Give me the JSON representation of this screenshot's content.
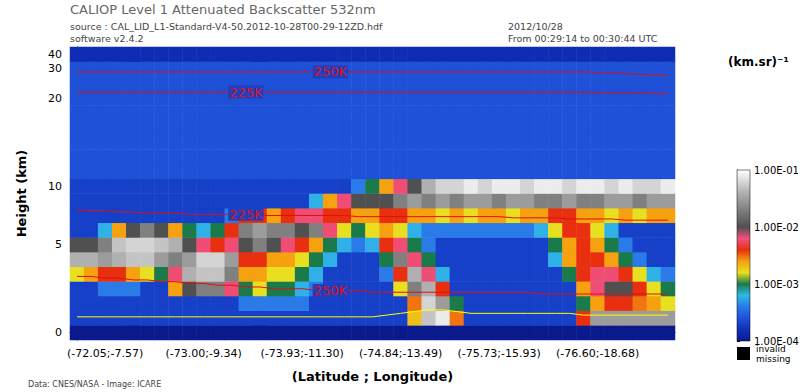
{
  "chart_data": {
    "type": "heatmap",
    "title": "CALIOP Level 1 Attenuated Backscatter 532nm",
    "header": {
      "source": "source : CAL_LID_L1-Standard-V4-50.2012-10-28T00-29-12ZD.hdf",
      "software": "software v2.4.2",
      "date": "2012/10/28",
      "time": "From 00:29:14 to 00:30:44 UTC"
    },
    "footer": "Data: CNES/NASA - Image: ICARE",
    "xlabel": "(Latitude ; Longitude)",
    "ylabel": "Height (km)",
    "x": [
      null,
      null,
      "(-72.05;-7.57)",
      null,
      null,
      null,
      null,
      null,
      null,
      "(-73.00;-9.34)",
      null,
      null,
      null,
      null,
      null,
      null,
      "(-73.93;-11.30)",
      null,
      null,
      null,
      null,
      null,
      null,
      "(-74.84;-13.49)",
      null,
      null,
      null,
      null,
      null,
      null,
      "(-75.73;-15.93)",
      null,
      null,
      null,
      null,
      null,
      null,
      "(-76.60;-18.68)",
      null,
      null,
      null,
      null,
      null
    ],
    "y": [
      0,
      null,
      null,
      null,
      null,
      null,
      5,
      null,
      null,
      null,
      10,
      null,
      null,
      null,
      null,
      null,
      20,
      null,
      30,
      40
    ],
    "cells": [
      [
        0.0001,
        0.0001,
        0.0001,
        0.0001,
        0.0001,
        0.0001,
        0.0001,
        0.0001,
        0.0001,
        0.0001,
        0.0001,
        0.0001,
        0.0001,
        0.0001,
        0.0001,
        0.0001,
        0.0001,
        0.0001,
        0.0001,
        0.0001,
        0.0001,
        0.0001,
        0.0001,
        0.0001,
        0.0001,
        0.0001,
        0.0001,
        0.0001,
        0.0001,
        0.0001,
        0.0001,
        0.0001,
        0.0001,
        0.0001,
        0.0001,
        0.0001,
        0.0001,
        0.0001,
        0.0001,
        0.0001,
        0.0001,
        0.0001,
        0.0001
      ],
      [
        0.0002,
        0.0002,
        0.0002,
        0.0002,
        0.0002,
        0.0002,
        0.0002,
        0.0002,
        0.0002,
        0.0002,
        0.0002,
        0.0002,
        0.0002,
        0.0002,
        0.0002,
        0.0002,
        0.0002,
        0.0002,
        0.0002,
        0.0002,
        0.0002,
        0.0002,
        0.0002,
        0.0002,
        0.002,
        0.05,
        0.08,
        0.003,
        0.0002,
        0.0002,
        0.0002,
        0.0002,
        0.0002,
        0.0002,
        0.0002,
        0.0002,
        0.004,
        0.03,
        0.03,
        0.03,
        0.03,
        0.03,
        0.03
      ],
      [
        0.0002,
        0.0002,
        0.0002,
        0.0002,
        0.0002,
        0.0002,
        0.0002,
        0.0002,
        0.0002,
        0.0002,
        0.0002,
        0.0002,
        0.0004,
        0.0004,
        0.0004,
        0.0004,
        0.0004,
        0.0002,
        0.0002,
        0.0002,
        0.0002,
        0.0002,
        0.0002,
        0.0002,
        0.003,
        0.06,
        0.03,
        0.001,
        0.0002,
        0.0002,
        0.0002,
        0.0002,
        0.0002,
        0.0002,
        0.0002,
        0.0002,
        0.001,
        0.0025,
        0.004,
        0.004,
        0.003,
        0.0025,
        0.0016
      ],
      [
        0.0002,
        0.0002,
        0.0004,
        0.0004,
        0.0004,
        0.0002,
        0.0002,
        0.0025,
        0.01,
        0.02,
        0.02,
        0.006,
        0.001,
        0.0016,
        0.001,
        0.001,
        0.0006,
        0.0004,
        0.0002,
        0.0002,
        0.0002,
        0.0002,
        0.0002,
        0.0016,
        0.02,
        0.04,
        0.004,
        0.0002,
        0.0002,
        0.0002,
        0.0002,
        0.0002,
        0.0002,
        0.0002,
        0.0002,
        0.0002,
        0.0025,
        0.006,
        0.01,
        0.01,
        0.004,
        0.0016,
        0.001
      ],
      [
        0.0016,
        0.0025,
        0.004,
        0.004,
        0.0025,
        0.0016,
        0.001,
        0.006,
        0.04,
        0.05,
        0.05,
        0.02,
        0.0025,
        0.0025,
        0.0016,
        0.0016,
        0.001,
        0.0006,
        0.0002,
        0.0002,
        0.0002,
        0.0002,
        0.0004,
        0.004,
        0.04,
        0.006,
        0.0006,
        0.0002,
        0.0002,
        0.0002,
        0.0002,
        0.0002,
        0.0002,
        0.0002,
        0.0002,
        0.001,
        0.004,
        0.006,
        0.006,
        0.004,
        0.0016,
        0.0006,
        0.0004
      ],
      [
        0.04,
        0.04,
        0.03,
        0.04,
        0.05,
        0.05,
        0.03,
        0.02,
        0.03,
        0.06,
        0.06,
        0.03,
        0.004,
        0.004,
        0.0025,
        0.0025,
        0.0016,
        0.001,
        0.0006,
        0.0002,
        0.0002,
        0.0002,
        0.001,
        0.02,
        0.006,
        0.001,
        0.0002,
        0.0002,
        0.0002,
        0.0002,
        0.0002,
        0.0002,
        0.0002,
        0.0002,
        0.0006,
        0.0025,
        0.004,
        0.004,
        0.0025,
        0.001,
        0.0004,
        0.0002,
        0.0002
      ],
      [
        0.01,
        0.01,
        0.02,
        0.05,
        0.06,
        0.06,
        0.05,
        0.04,
        0.01,
        0.006,
        0.004,
        0.006,
        0.01,
        0.02,
        0.01,
        0.006,
        0.004,
        0.0025,
        0.001,
        0.0006,
        0.0004,
        0.0006,
        0.004,
        0.006,
        0.001,
        0.0004,
        0.0002,
        0.0002,
        0.0002,
        0.0002,
        0.0002,
        0.0002,
        0.0002,
        0.0002,
        0.001,
        0.0025,
        0.004,
        0.0025,
        0.001,
        0.0004,
        0.0002,
        0.0002,
        0.0002
      ],
      [
        0.0002,
        0.0002,
        0.0006,
        0.0025,
        0.01,
        0.02,
        0.01,
        0.0025,
        0.001,
        0.0006,
        0.001,
        0.004,
        0.02,
        0.03,
        0.02,
        0.02,
        0.01,
        0.02,
        0.006,
        0.0016,
        0.001,
        0.0016,
        0.0025,
        0.0016,
        0.0006,
        0.0004,
        0.0004,
        0.0004,
        0.0004,
        0.0004,
        0.0004,
        0.0004,
        0.0004,
        0.0006,
        0.0016,
        0.004,
        0.004,
        0.0016,
        0.0006,
        0.0002,
        0.0002,
        0.0002,
        0.0002
      ],
      [
        0.0002,
        0.0002,
        0.0002,
        0.0002,
        0.0002,
        0.0002,
        0.0002,
        0.0002,
        0.0002,
        0.0002,
        0.0002,
        0.0004,
        0.004,
        0.004,
        0.0025,
        0.004,
        0.006,
        0.006,
        0.004,
        0.004,
        0.0025,
        0.0025,
        0.004,
        0.004,
        0.0025,
        0.0025,
        0.0016,
        0.0025,
        0.0016,
        0.0025,
        0.0025,
        0.0016,
        0.0025,
        0.0025,
        0.004,
        0.004,
        0.0025,
        0.0025,
        0.0016,
        0.0025,
        0.0016,
        0.0025,
        0.0025
      ],
      [
        0.0002,
        0.0002,
        0.0002,
        0.0002,
        0.0002,
        0.0002,
        0.0002,
        0.0002,
        0.0002,
        0.0002,
        0.0002,
        0.0002,
        0.0002,
        0.0002,
        0.0002,
        0.0002,
        0.0002,
        0.0006,
        0.0025,
        0.006,
        0.01,
        0.01,
        0.01,
        0.02,
        0.03,
        0.02,
        0.03,
        0.02,
        0.03,
        0.03,
        0.02,
        0.03,
        0.03,
        0.02,
        0.02,
        0.03,
        0.02,
        0.02,
        0.03,
        0.03,
        0.02,
        0.03,
        0.03
      ],
      [
        0.0002,
        0.0002,
        0.0002,
        0.0002,
        0.0002,
        0.0002,
        0.0002,
        0.0002,
        0.0002,
        0.0002,
        0.0002,
        0.0002,
        0.0002,
        0.0002,
        0.0002,
        0.0002,
        0.0002,
        0.0002,
        0.0002,
        0.0002,
        0.0004,
        0.001,
        0.0025,
        0.006,
        0.01,
        0.04,
        0.06,
        0.06,
        0.08,
        0.06,
        0.08,
        0.08,
        0.06,
        0.08,
        0.08,
        0.06,
        0.08,
        0.08,
        0.06,
        0.08,
        0.06,
        0.06,
        0.08
      ],
      [
        0.00025,
        0.00025,
        0.00025,
        0.00025,
        0.00025,
        0.00025,
        0.00025,
        0.00025,
        0.00025,
        0.00025,
        0.00025,
        0.00025,
        0.00025,
        0.00025,
        0.00025,
        0.00025,
        0.00025,
        0.00025,
        0.00025,
        0.00025,
        0.00025,
        0.00025,
        0.00025,
        0.00025,
        0.00025,
        0.00025,
        0.00025,
        0.00025,
        0.00025,
        0.00025,
        0.00025,
        0.00025,
        0.00025,
        0.00025,
        0.00025,
        0.00025,
        0.00025,
        0.00025,
        0.00025,
        0.00025,
        0.00025,
        0.00025,
        0.00025
      ],
      [
        0.00025,
        0.00025,
        0.00025,
        0.00025,
        0.00025,
        0.00025,
        0.00025,
        0.00025,
        0.00025,
        0.00025,
        0.00025,
        0.00025,
        0.00025,
        0.00025,
        0.00025,
        0.00025,
        0.00025,
        0.00025,
        0.00025,
        0.00025,
        0.00025,
        0.00025,
        0.00025,
        0.00025,
        0.00025,
        0.00025,
        0.00025,
        0.00025,
        0.00025,
        0.00025,
        0.00025,
        0.00025,
        0.00025,
        0.00025,
        0.00025,
        0.00025,
        0.00025,
        0.00025,
        0.00025,
        0.00025,
        0.00025,
        0.00025,
        0.00025
      ],
      [
        0.00025,
        0.00025,
        0.00025,
        0.00025,
        0.00025,
        0.00025,
        0.00025,
        0.00025,
        0.00025,
        0.00025,
        0.00025,
        0.00025,
        0.00025,
        0.00025,
        0.00025,
        0.00025,
        0.00025,
        0.00025,
        0.00025,
        0.00025,
        0.00025,
        0.00025,
        0.00025,
        0.00025,
        0.00025,
        0.00025,
        0.00025,
        0.00025,
        0.00025,
        0.00025,
        0.00025,
        0.00025,
        0.00025,
        0.00025,
        0.00025,
        0.00025,
        0.00025,
        0.00025,
        0.00025,
        0.00025,
        0.00025,
        0.00025,
        0.00025
      ],
      [
        0.00025,
        0.00025,
        0.00025,
        0.00025,
        0.00025,
        0.00025,
        0.00025,
        0.00025,
        0.00025,
        0.00025,
        0.00025,
        0.00025,
        0.00025,
        0.00025,
        0.00025,
        0.00025,
        0.00025,
        0.00025,
        0.00025,
        0.00025,
        0.00025,
        0.00025,
        0.00025,
        0.00025,
        0.00025,
        0.00025,
        0.00025,
        0.00025,
        0.00025,
        0.00025,
        0.00025,
        0.00025,
        0.00025,
        0.00025,
        0.00025,
        0.00025,
        0.00025,
        0.00025,
        0.00025,
        0.00025,
        0.00025,
        0.00025,
        0.00025
      ],
      [
        0.00025,
        0.00025,
        0.00025,
        0.00025,
        0.00025,
        0.00025,
        0.00025,
        0.00025,
        0.00025,
        0.00025,
        0.00025,
        0.00025,
        0.00025,
        0.00025,
        0.00025,
        0.00025,
        0.00025,
        0.00025,
        0.00025,
        0.00025,
        0.00025,
        0.00025,
        0.00025,
        0.00025,
        0.00025,
        0.00025,
        0.00025,
        0.00025,
        0.00025,
        0.00025,
        0.00025,
        0.00025,
        0.00025,
        0.00025,
        0.00025,
        0.00025,
        0.00025,
        0.00025,
        0.00025,
        0.00025,
        0.00025,
        0.00025,
        0.00025
      ],
      [
        0.00025,
        0.00025,
        0.00025,
        0.00025,
        0.00025,
        0.00025,
        0.00025,
        0.00025,
        0.00025,
        0.00025,
        0.00025,
        0.00025,
        0.00025,
        0.00025,
        0.00025,
        0.00025,
        0.00025,
        0.00025,
        0.00025,
        0.00025,
        0.00025,
        0.00025,
        0.00025,
        0.00025,
        0.00025,
        0.00025,
        0.00025,
        0.00025,
        0.00025,
        0.00025,
        0.00025,
        0.00025,
        0.00025,
        0.00025,
        0.00025,
        0.00025,
        0.00025,
        0.00025,
        0.00025,
        0.00025,
        0.00025,
        0.00025,
        0.00025
      ],
      [
        0.00025,
        0.00025,
        0.00025,
        0.00025,
        0.00025,
        0.00025,
        0.00025,
        0.00025,
        0.00025,
        0.00025,
        0.00025,
        0.00025,
        0.00025,
        0.00025,
        0.00025,
        0.00025,
        0.00025,
        0.00025,
        0.00025,
        0.00025,
        0.00025,
        0.00025,
        0.00025,
        0.00025,
        0.00025,
        0.00025,
        0.00025,
        0.00025,
        0.00025,
        0.00025,
        0.00025,
        0.00025,
        0.00025,
        0.00025,
        0.00025,
        0.00025,
        0.00025,
        0.00025,
        0.00025,
        0.00025,
        0.00025,
        0.00025,
        0.00025
      ],
      [
        0.00025,
        0.00025,
        0.00025,
        0.00025,
        0.00025,
        0.00025,
        0.00025,
        0.00025,
        0.00025,
        0.00025,
        0.00025,
        0.00025,
        0.00025,
        0.00025,
        0.00025,
        0.00025,
        0.00025,
        0.00025,
        0.00025,
        0.00025,
        0.00025,
        0.00025,
        0.00025,
        0.00025,
        0.00025,
        0.00025,
        0.00025,
        0.00025,
        0.00025,
        0.00025,
        0.00025,
        0.00025,
        0.00025,
        0.00025,
        0.00025,
        0.00025,
        0.00025,
        0.00025,
        0.00025,
        0.00025,
        0.00025,
        0.00025,
        0.00025
      ],
      [
        0.00015,
        0.00015,
        0.00015,
        0.00015,
        0.00015,
        0.00015,
        0.00015,
        0.00015,
        0.00015,
        0.00015,
        0.00015,
        0.00015,
        0.00015,
        0.00015,
        0.00015,
        0.00015,
        0.00015,
        0.00015,
        0.00015,
        0.00015,
        0.00015,
        0.00015,
        0.00015,
        0.00015,
        0.00015,
        0.00015,
        0.00015,
        0.00015,
        0.00015,
        0.00015,
        0.00015,
        0.00015,
        0.00015,
        0.00015,
        0.00015,
        0.00015,
        0.00015,
        0.00015,
        0.00015,
        0.00015,
        0.00015,
        0.00015,
        0.00015
      ]
    ],
    "lines": [
      {
        "name": "250K",
        "color": "#e01010",
        "values": [
          29.0,
          29.0,
          29.0,
          29.0,
          29.0,
          29.0,
          29.0,
          29.0,
          29.0,
          29.0,
          29.0,
          29.0,
          29.0,
          29.0,
          29.0,
          29.0,
          29.0,
          29.0,
          29.0,
          29.0,
          29.0,
          29.0,
          29.0,
          29.0,
          29.0,
          29.0,
          29.0,
          29.0,
          29.0,
          29.0,
          29.0,
          29.0,
          29.0,
          29.0,
          29.0,
          29.0,
          29.0,
          28.8,
          28.6,
          28.4,
          28.2,
          28.0,
          27.9
        ]
      },
      {
        "name": "225K",
        "color": "#e01010",
        "values": [
          22.1,
          22.1,
          22.1,
          22.1,
          22.1,
          22.1,
          22.1,
          22.1,
          22.1,
          22.1,
          22.1,
          22.1,
          22.1,
          22.1,
          22.1,
          22.1,
          22.1,
          22.1,
          22.1,
          22.1,
          22.1,
          22.1,
          22.1,
          22.1,
          22.1,
          22.1,
          22.1,
          22.1,
          22.1,
          22.1,
          22.1,
          22.1,
          22.1,
          22.1,
          22.1,
          22.1,
          22.1,
          22.0,
          21.9,
          21.8,
          21.7,
          21.6,
          21.5
        ]
      },
      {
        "name": "225K",
        "color": "#e01010",
        "values": [
          8.0,
          7.9,
          7.9,
          7.8,
          7.8,
          7.7,
          7.7,
          7.7,
          7.6,
          7.6,
          7.6,
          7.6,
          7.6,
          7.5,
          7.5,
          7.5,
          7.5,
          7.5,
          7.5,
          7.5,
          7.4,
          7.4,
          7.4,
          7.4,
          7.4,
          7.4,
          7.4,
          7.4,
          7.4,
          7.4,
          7.4,
          7.3,
          7.3,
          7.3,
          7.3,
          7.2,
          7.2,
          7.2,
          7.2,
          7.1,
          7.1,
          7.1,
          7.1
        ]
      },
      {
        "name": "250K",
        "color": "#e01010",
        "values": [
          3.2,
          3.2,
          3.1,
          3.1,
          3.0,
          3.0,
          2.9,
          2.9,
          2.8,
          2.8,
          2.7,
          2.7,
          2.6,
          2.6,
          2.5,
          2.5,
          2.5,
          2.4,
          2.4,
          2.4,
          2.4,
          2.3,
          2.3,
          2.3,
          2.3,
          2.3,
          2.3,
          2.3,
          2.3,
          2.3,
          2.3,
          2.3,
          2.3,
          2.2,
          2.2,
          2.2,
          2.2,
          2.2,
          2.2,
          2.2,
          2.2,
          2.2,
          2.2
        ]
      },
      {
        "color": "#ffff00",
        "values": [
          0.9,
          0.9,
          0.9,
          0.9,
          0.9,
          0.9,
          0.9,
          0.9,
          0.9,
          0.9,
          0.9,
          0.9,
          0.9,
          0.9,
          0.9,
          0.9,
          0.9,
          0.9,
          0.9,
          0.9,
          0.9,
          0.9,
          1.0,
          1.1,
          1.2,
          1.3,
          1.3,
          1.2,
          1.1,
          1.1,
          1.1,
          1.1,
          1.1,
          1.1,
          1.1,
          1.1,
          1.0,
          1.0,
          1.0,
          1.0,
          1.0,
          1.0,
          1.0
        ]
      }
    ],
    "colorbar": {
      "label": "(km.sr)⁻¹",
      "log": true,
      "range": [
        0.0001,
        0.1
      ],
      "ticks": [
        {
          "value": 0.1,
          "label": "1.00E-01"
        },
        {
          "value": 0.01,
          "label": "1.00E-02"
        },
        {
          "value": 0.001,
          "label": "1.00E-03"
        },
        {
          "value": 0.0001,
          "label": "1.00E-04"
        }
      ],
      "missing_label": "invalid\nmissing"
    }
  }
}
